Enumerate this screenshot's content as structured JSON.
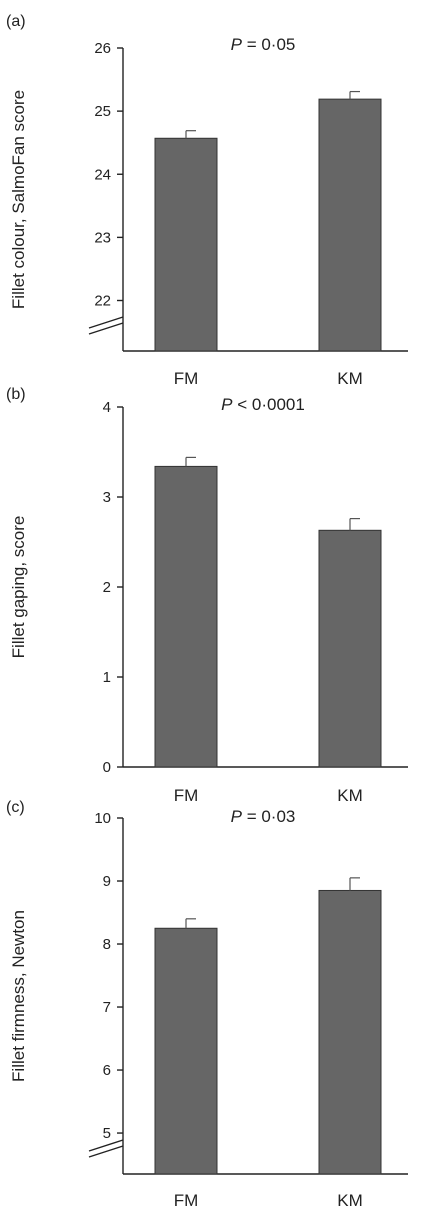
{
  "chart_data": [
    {
      "type": "bar",
      "panel_label": "(a)",
      "annotation": {
        "prefix": "P",
        "text": " = 0·05"
      },
      "ylabel": "Fillet colour, SalmoFan score",
      "categories": [
        "FM",
        "KM"
      ],
      "values": [
        24.57,
        25.19
      ],
      "errors": [
        0.12,
        0.12
      ],
      "ylim": [
        21.2,
        26
      ],
      "yticks": [
        22,
        23,
        24,
        25,
        26
      ],
      "axis_break": true,
      "bar_color": "#666666"
    },
    {
      "type": "bar",
      "panel_label": "(b)",
      "annotation": {
        "prefix": "P",
        "text": " < 0·0001"
      },
      "ylabel": "Fillet gaping, score",
      "categories": [
        "FM",
        "KM"
      ],
      "values": [
        3.34,
        2.63
      ],
      "errors": [
        0.1,
        0.13
      ],
      "ylim": [
        0,
        4
      ],
      "yticks": [
        0,
        1,
        2,
        3,
        4
      ],
      "axis_break": false,
      "bar_color": "#666666"
    },
    {
      "type": "bar",
      "panel_label": "(c)",
      "annotation": {
        "prefix": "P",
        "text": " = 0·03"
      },
      "ylabel": "Fillet firmness, Newton",
      "categories": [
        "FM",
        "KM"
      ],
      "values": [
        8.25,
        8.85
      ],
      "errors": [
        0.15,
        0.2
      ],
      "ylim": [
        4.35,
        10
      ],
      "yticks": [
        5,
        6,
        7,
        8,
        9,
        10
      ],
      "axis_break": true,
      "bar_color": "#666666"
    }
  ]
}
